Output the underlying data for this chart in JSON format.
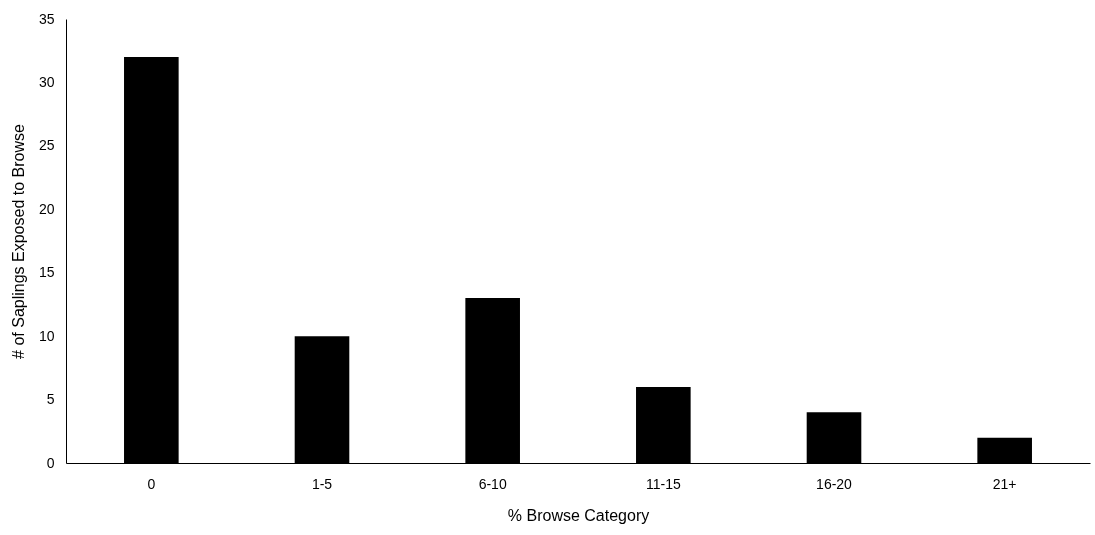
{
  "chart_data": {
    "type": "bar",
    "xlabel": "% Browse Category",
    "ylabel": "# of Saplings Exposed to Browse",
    "categories": [
      "0",
      "1-5",
      "6-10",
      "11-15",
      "16-20",
      "21+"
    ],
    "values": [
      32,
      10,
      13,
      6,
      4,
      2
    ],
    "color": "#000000",
    "ylim": [
      0,
      35
    ],
    "yticks": [
      0,
      5,
      10,
      15,
      20,
      25,
      30,
      35
    ],
    "grid": false
  }
}
